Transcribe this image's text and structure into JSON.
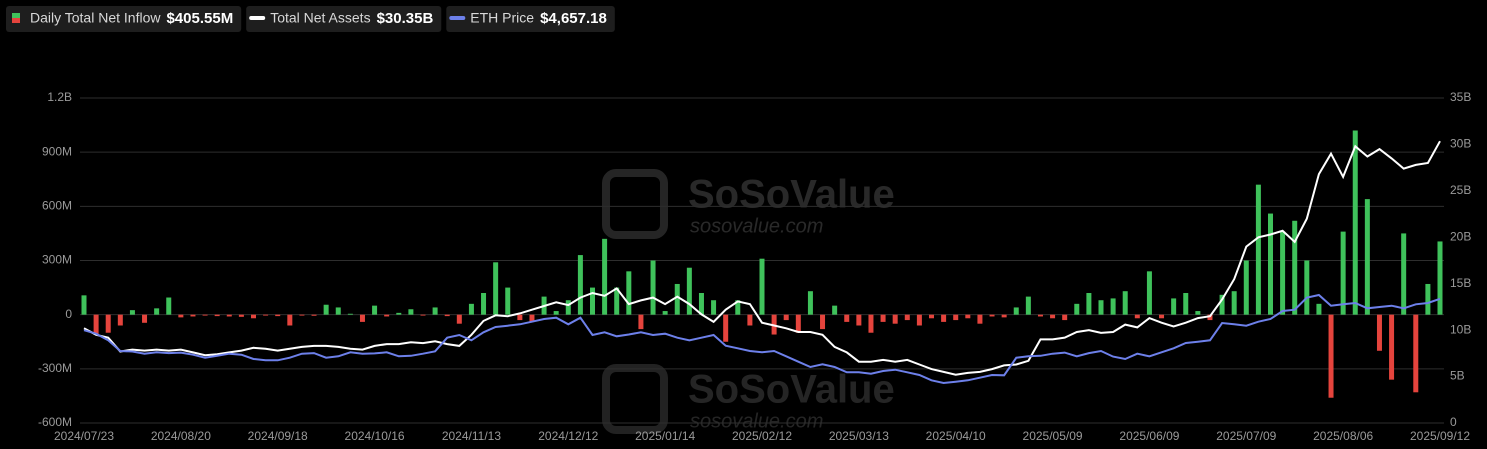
{
  "chart_data": {
    "type": "bar-line",
    "watermark": "SoSoValue",
    "watermark_url": "sosovalue.com",
    "categories": [
      "2024/07/23",
      null,
      null,
      null,
      null,
      null,
      null,
      null,
      "2024/08/20",
      null,
      null,
      null,
      null,
      null,
      null,
      null,
      "2024/09/18",
      null,
      null,
      null,
      null,
      null,
      null,
      null,
      "2024/10/16",
      null,
      null,
      null,
      null,
      null,
      null,
      null,
      "2024/11/13",
      null,
      null,
      null,
      null,
      null,
      null,
      null,
      "2024/12/12",
      null,
      null,
      null,
      null,
      null,
      null,
      null,
      "2025/01/14",
      null,
      null,
      null,
      null,
      null,
      null,
      null,
      "2025/02/12",
      null,
      null,
      null,
      null,
      null,
      null,
      null,
      "2025/03/13",
      null,
      null,
      null,
      null,
      null,
      null,
      null,
      "2025/04/10",
      null,
      null,
      null,
      null,
      null,
      null,
      null,
      "2025/05/09",
      null,
      null,
      null,
      null,
      null,
      null,
      null,
      "2025/06/09",
      null,
      null,
      null,
      null,
      null,
      null,
      null,
      "2025/07/09",
      null,
      null,
      null,
      null,
      null,
      null,
      null,
      "2025/08/06",
      null,
      null,
      null,
      null,
      null,
      null,
      null,
      "2025/09/12"
    ],
    "series": [
      {
        "name": "Daily Total Net Inflow",
        "latest": "$405.55M",
        "type": "bar",
        "axis": "y",
        "color": "#3fc25b",
        "negative_color": "#e5443d",
        "values": [
          107,
          -110,
          -100,
          -60,
          25,
          -45,
          35,
          95,
          -15,
          -10,
          -5,
          -8,
          -10,
          -12,
          -20,
          -5,
          -8,
          -60,
          -5,
          -6,
          55,
          40,
          5,
          -40,
          50,
          -10,
          10,
          30,
          -5,
          40,
          -8,
          -50,
          60,
          120,
          290,
          150,
          -30,
          -40,
          100,
          20,
          80,
          330,
          150,
          420,
          150,
          240,
          -80,
          300,
          20,
          170,
          260,
          120,
          80,
          -150,
          80,
          -60,
          310,
          -110,
          -30,
          -100,
          130,
          -80,
          50,
          -40,
          -60,
          -100,
          -40,
          -50,
          -30,
          -60,
          -20,
          -40,
          -30,
          -20,
          -50,
          -10,
          -15,
          40,
          100,
          -10,
          -20,
          -30,
          60,
          120,
          80,
          90,
          130,
          -20,
          240,
          -20,
          90,
          120,
          20,
          -30,
          110,
          130,
          300,
          720,
          560,
          460,
          520,
          300,
          60,
          -460,
          460,
          1020,
          640,
          -200,
          -360,
          450,
          -430,
          170,
          405.55
        ]
      },
      {
        "name": "Total Net Assets",
        "latest": "$30.35B",
        "type": "line",
        "axis": "y2",
        "color": "#ffffff",
        "values": [
          10.2,
          9.5,
          9.2,
          7.7,
          7.9,
          7.8,
          7.9,
          7.8,
          7.9,
          7.6,
          7.3,
          7.4,
          7.6,
          7.8,
          8.1,
          8.0,
          7.8,
          8.0,
          8.2,
          8.3,
          8.3,
          8.2,
          8.0,
          7.9,
          8.3,
          8.5,
          8.5,
          8.7,
          8.6,
          8.8,
          8.5,
          8.3,
          9.5,
          11.0,
          11.6,
          11.5,
          11.8,
          12.2,
          12.6,
          13.0,
          12.7,
          13.5,
          14.0,
          13.7,
          14.5,
          12.8,
          13.2,
          13.5,
          12.8,
          13.6,
          12.8,
          11.7,
          10.9,
          12.2,
          13.1,
          12.8,
          10.8,
          10.5,
          10.2,
          9.8,
          9.8,
          9.5,
          8.2,
          7.6,
          6.6,
          6.6,
          6.8,
          6.6,
          6.8,
          6.3,
          5.8,
          5.5,
          5.2,
          5.4,
          5.5,
          5.8,
          6.2,
          6.3,
          6.7,
          9.0,
          9.0,
          9.2,
          9.8,
          10.0,
          9.7,
          9.8,
          10.6,
          10.3,
          11.3,
          10.8,
          10.4,
          10.8,
          11.3,
          11.5,
          13.3,
          15.5,
          19.0,
          20.0,
          20.3,
          20.7,
          19.5,
          22.0,
          26.8,
          29.0,
          26.5,
          29.8,
          28.7,
          29.5,
          28.5,
          27.4,
          27.8,
          28.0,
          30.35
        ]
      },
      {
        "name": "ETH Price",
        "latest": "$4,657.18",
        "type": "line",
        "axis": "own",
        "color": "#6d80ea",
        "values": [
          3480,
          3350,
          3100,
          2700,
          2680,
          2600,
          2650,
          2620,
          2640,
          2560,
          2450,
          2520,
          2600,
          2560,
          2400,
          2350,
          2350,
          2450,
          2600,
          2620,
          2450,
          2500,
          2650,
          2600,
          2610,
          2650,
          2500,
          2520,
          2600,
          2690,
          3200,
          3300,
          3100,
          3400,
          3600,
          3650,
          3700,
          3800,
          3900,
          3950,
          3700,
          3950,
          3300,
          3400,
          3250,
          3320,
          3400,
          3300,
          3350,
          3200,
          3100,
          3200,
          3300,
          2900,
          2800,
          2700,
          2650,
          2700,
          2500,
          2300,
          2100,
          2200,
          2100,
          1900,
          1900,
          1850,
          1950,
          2000,
          1900,
          1800,
          1600,
          1500,
          1550,
          1600,
          1700,
          1800,
          1790,
          2450,
          2500,
          2520,
          2600,
          2640,
          2500,
          2620,
          2700,
          2490,
          2400,
          2600,
          2500,
          2650,
          2800,
          3000,
          3050,
          3100,
          3750,
          3700,
          3650,
          3800,
          3900,
          4200,
          4250,
          4700,
          4800,
          4400,
          4450,
          4500,
          4300,
          4350,
          4400,
          4300,
          4450,
          4500,
          4657.18
        ]
      }
    ],
    "ylim": [
      -600,
      1200
    ],
    "yticks": [
      {
        "value": -600,
        "label": "-600M"
      },
      {
        "value": -300,
        "label": "-300M"
      },
      0,
      {
        "value": 300,
        "label": "300M"
      },
      {
        "value": 600,
        "label": "600M"
      },
      {
        "value": 900,
        "label": "900M"
      },
      {
        "value": 1200,
        "label": "1.2B"
      }
    ],
    "y2lim": [
      0,
      35
    ],
    "y2ticks": [
      0,
      {
        "value": 5,
        "label": "5B"
      },
      {
        "value": 10,
        "label": "10B"
      },
      {
        "value": 15,
        "label": "15B"
      },
      {
        "value": 20,
        "label": "20B"
      },
      {
        "value": 25,
        "label": "25B"
      },
      {
        "value": 30,
        "label": "30B"
      },
      {
        "value": 35,
        "label": "35B"
      }
    ],
    "grid": true
  }
}
